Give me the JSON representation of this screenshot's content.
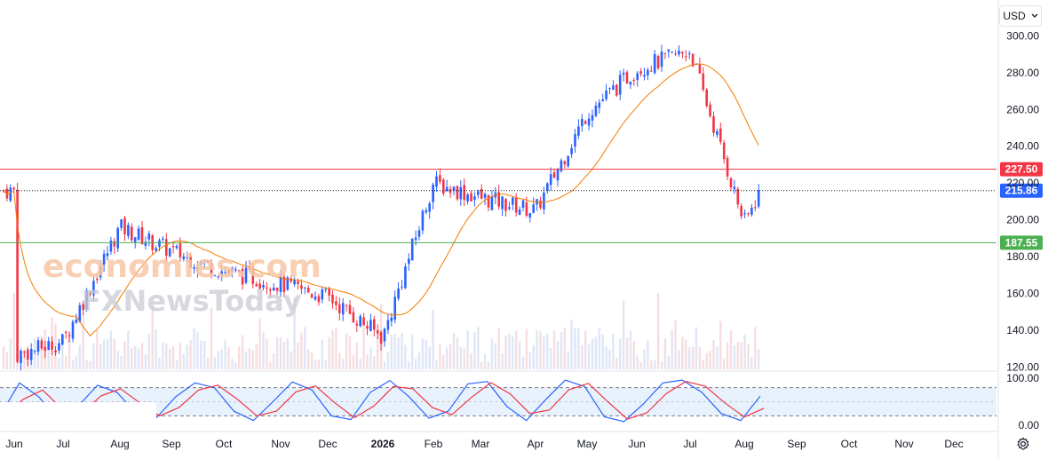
{
  "toolbar": {
    "currency": "USD",
    "currency_chevron": "chevron-down-icon",
    "settings_icon": "gear-icon"
  },
  "watermark": "economies.com FXNewsToday",
  "colors": {
    "up": "#2962ff",
    "down": "#f23645",
    "ma": "#f57c00",
    "resistance": "#f23645",
    "support": "#4caf50",
    "last": "#2962ff",
    "osc_k": "#2962ff",
    "osc_d": "#f23645",
    "osc_band": "#e8f2fd"
  },
  "chart_data": [
    {
      "type": "candlestick",
      "title": "",
      "y_axis_ticks": [
        "300.00",
        "280.00",
        "260.00",
        "240.00",
        "220.00",
        "200.00",
        "180.00",
        "160.00",
        "140.00",
        "120.00"
      ],
      "ylim": [
        110,
        306
      ],
      "x_axis_ticks": [
        "Jun",
        "Jul",
        "Aug",
        "Sep",
        "Oct",
        "Nov",
        "Dec",
        "2026",
        "Feb",
        "Mar",
        "Apr",
        "May",
        "Jun",
        "Jul",
        "Aug",
        "Sep",
        "Oct",
        "Nov",
        "Dec"
      ],
      "horizontal_levels": [
        {
          "name": "resistance",
          "value": 227.5,
          "label": "227.50"
        },
        {
          "name": "last-price",
          "value": 215.86,
          "label": "215.86"
        },
        {
          "name": "support",
          "value": 187.55,
          "label": "187.55"
        }
      ],
      "moving_average": true,
      "series_anchors": [
        {
          "x": "Jun",
          "close": 126
        },
        {
          "x": "Jul",
          "close": 134
        },
        {
          "x": "Aug",
          "close": 196
        },
        {
          "x": "Sep",
          "close": 183
        },
        {
          "x": "Oct",
          "close": 172
        },
        {
          "x": "Nov",
          "close": 165
        },
        {
          "x": "Dec",
          "close": 158
        },
        {
          "x": "2026",
          "close": 136
        },
        {
          "x": "Feb",
          "close": 220
        },
        {
          "x": "Mar",
          "close": 212
        },
        {
          "x": "Apr",
          "close": 205
        },
        {
          "x": "May",
          "close": 258
        },
        {
          "x": "Jun",
          "close": 282
        },
        {
          "x": "Jul",
          "close": 292
        },
        {
          "x": "Aug",
          "close": 198
        }
      ]
    },
    {
      "type": "line",
      "title": "",
      "y_axis_ticks": [
        "100.00",
        "0.00"
      ],
      "ylim": [
        0,
        100
      ],
      "bands": [
        80,
        20
      ],
      "series": [
        {
          "values": [
            20,
            90,
            60,
            10,
            40,
            85,
            70,
            25,
            15,
            60,
            90,
            80,
            30,
            10,
            50,
            92,
            75,
            20,
            12,
            70,
            95,
            60,
            15,
            30,
            88,
            93,
            40,
            10,
            55,
            96,
            82,
            18,
            8,
            45,
            90,
            96,
            70,
            25,
            10,
            62
          ]
        }
      ]
    }
  ]
}
